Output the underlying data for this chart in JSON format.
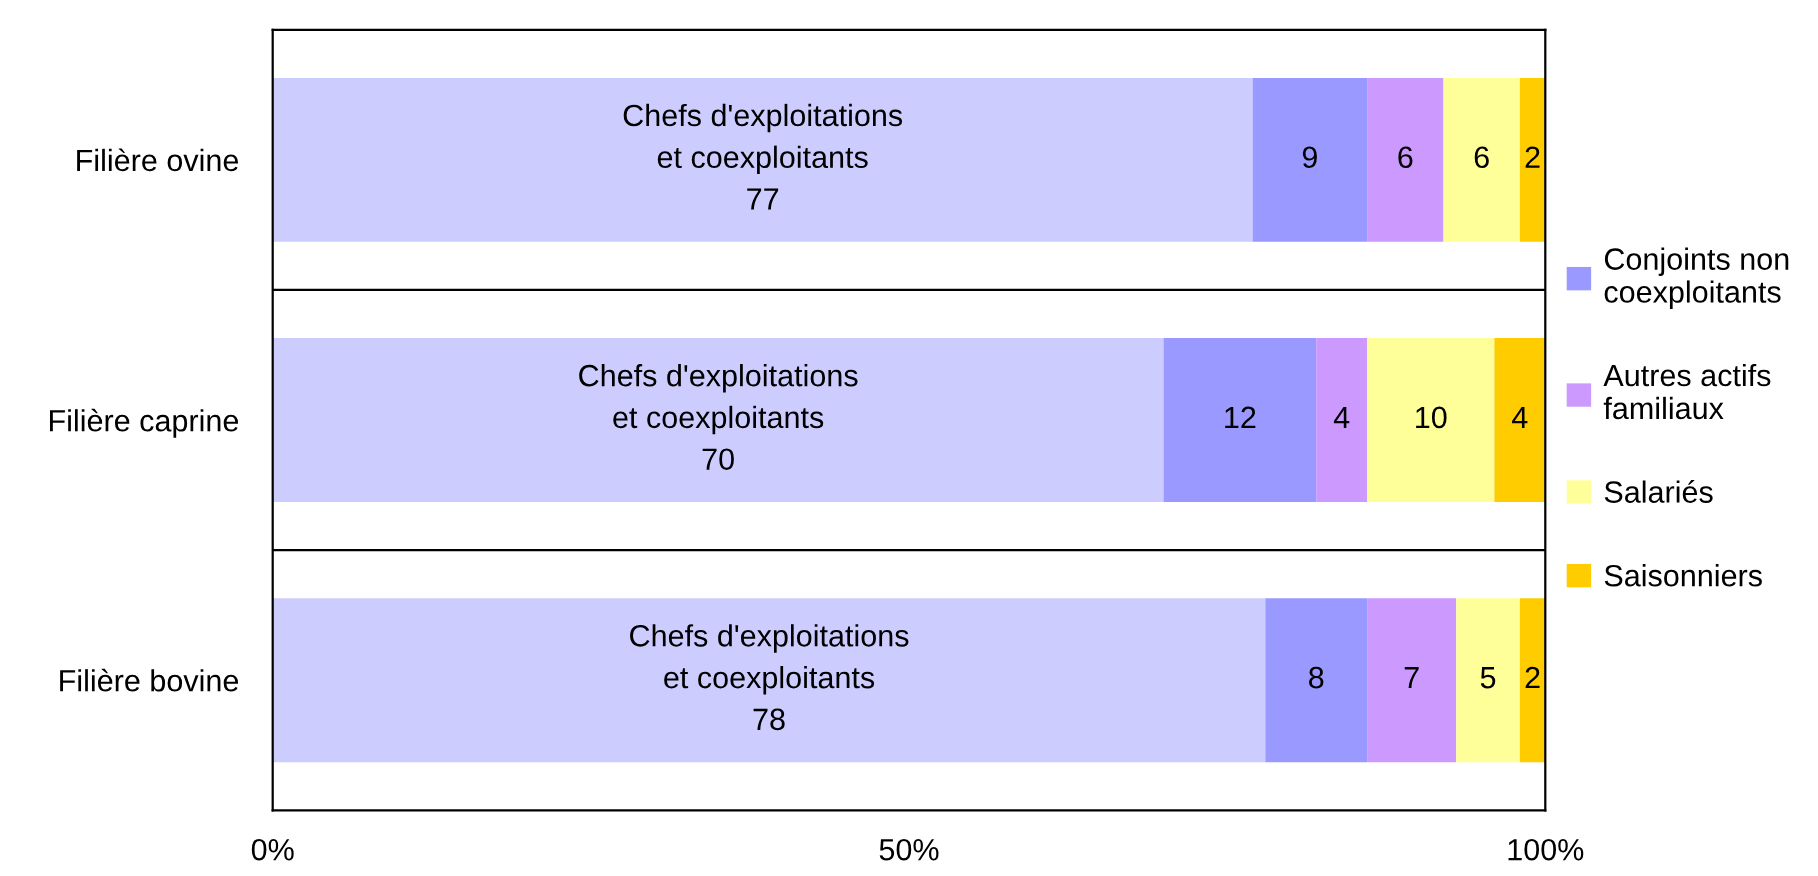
{
  "chart_data": {
    "type": "bar",
    "orientation": "horizontal",
    "stacked": true,
    "categories": [
      "Filière ovine",
      "Filière caprine",
      "Filière bovine"
    ],
    "series": [
      {
        "name": "Chefs d'exploitations\net coexploitants",
        "color": "#ccccff",
        "values": [
          77,
          70,
          78
        ]
      },
      {
        "name": "Conjoints non\ncoexploitants",
        "color": "#9999ff",
        "values": [
          9,
          12,
          8
        ]
      },
      {
        "name": "Autres actifs\nfamiliaux",
        "color": "#cc99ff",
        "values": [
          6,
          4,
          7
        ]
      },
      {
        "name": "Salariés",
        "color": "#ffff99",
        "values": [
          6,
          10,
          5
        ]
      },
      {
        "name": "Saisonniers",
        "color": "#ffcc00",
        "values": [
          2,
          4,
          2
        ]
      }
    ],
    "xlim": [
      0,
      100
    ],
    "xticks": [
      {
        "value": 0,
        "label": "0%"
      },
      {
        "value": 50,
        "label": "50%"
      },
      {
        "value": 100,
        "label": "100%"
      }
    ],
    "data_labels": true,
    "grid": "y",
    "legend": "right"
  }
}
